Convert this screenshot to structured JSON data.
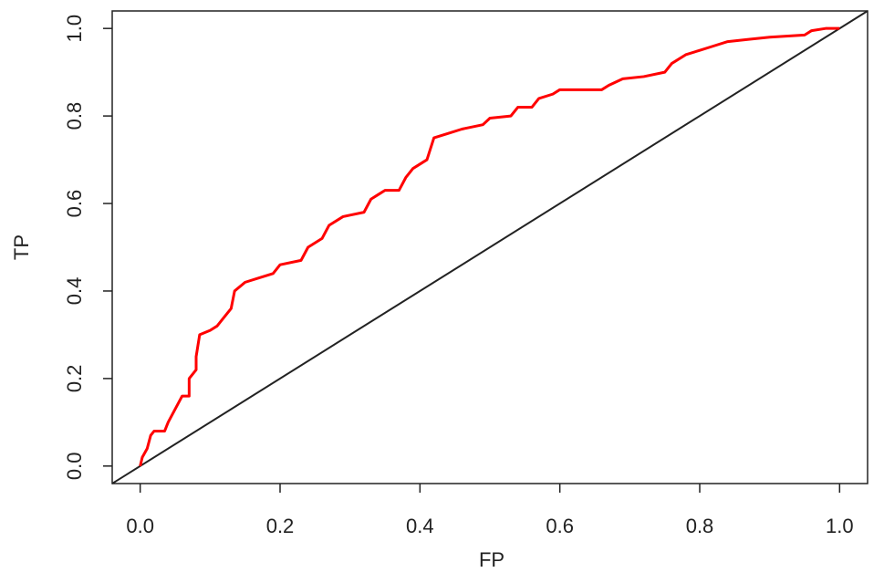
{
  "chart_data": {
    "type": "line",
    "x_label": "FP",
    "y_label": "TP",
    "x": [
      0,
      0.003,
      0.01,
      0.015,
      0.02,
      0.035,
      0.04,
      0.05,
      0.06,
      0.07,
      0.07,
      0.08,
      0.08,
      0.085,
      0.1,
      0.11,
      0.12,
      0.13,
      0.135,
      0.15,
      0.17,
      0.19,
      0.2,
      0.23,
      0.24,
      0.26,
      0.27,
      0.29,
      0.32,
      0.33,
      0.34,
      0.35,
      0.37,
      0.38,
      0.39,
      0.41,
      0.42,
      0.44,
      0.46,
      0.49,
      0.5,
      0.53,
      0.54,
      0.56,
      0.57,
      0.59,
      0.6,
      0.66,
      0.67,
      0.69,
      0.72,
      0.75,
      0.76,
      0.78,
      0.8,
      0.82,
      0.84,
      0.87,
      0.9,
      0.95,
      0.96,
      0.98,
      1.0
    ],
    "series": [
      {
        "color": "#ff0000",
        "values": [
          0,
          0.02,
          0.04,
          0.07,
          0.08,
          0.08,
          0.1,
          0.13,
          0.16,
          0.16,
          0.2,
          0.22,
          0.25,
          0.3,
          0.31,
          0.32,
          0.34,
          0.36,
          0.4,
          0.42,
          0.43,
          0.44,
          0.46,
          0.47,
          0.5,
          0.52,
          0.55,
          0.57,
          0.58,
          0.61,
          0.62,
          0.63,
          0.63,
          0.66,
          0.68,
          0.7,
          0.75,
          0.76,
          0.77,
          0.78,
          0.795,
          0.8,
          0.82,
          0.82,
          0.84,
          0.85,
          0.86,
          0.86,
          0.87,
          0.885,
          0.89,
          0.9,
          0.92,
          0.94,
          0.95,
          0.96,
          0.97,
          0.975,
          0.98,
          0.985,
          0.995,
          1.0,
          1.0
        ]
      }
    ],
    "diagonal_color": "#222222",
    "xlim": [
      -0.04,
      1.04
    ],
    "ylim": [
      -0.04,
      1.04
    ],
    "xticks": [
      {
        "value": 0,
        "label": "0.0"
      },
      0.2,
      0.4,
      0.6,
      0.8,
      {
        "value": 1,
        "label": "1.0"
      }
    ],
    "yticks": [
      {
        "value": 0,
        "label": "0.0"
      },
      0.2,
      0.4,
      0.6,
      0.8,
      {
        "value": 1,
        "label": "1.0"
      }
    ]
  }
}
